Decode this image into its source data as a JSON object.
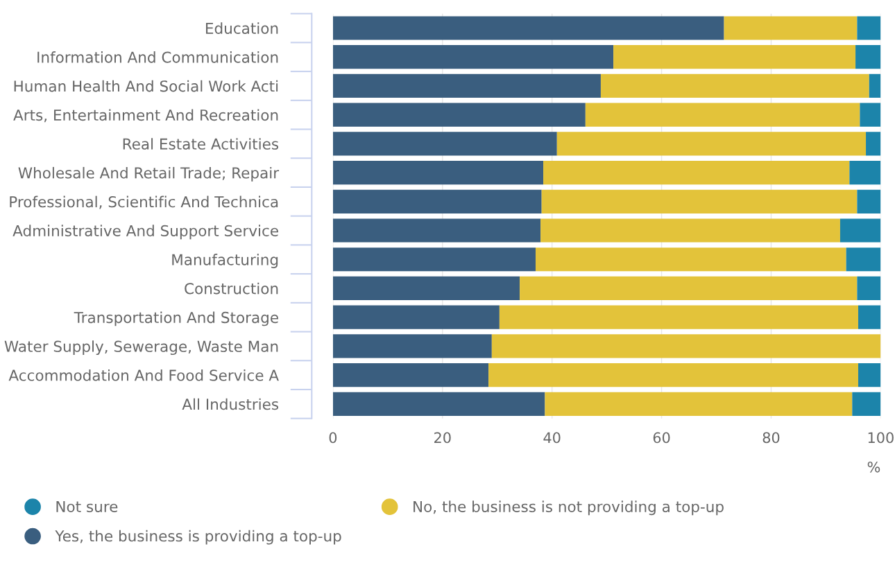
{
  "chart_data": {
    "type": "bar",
    "orientation": "horizontal",
    "stacked": true,
    "categories": [
      "Education",
      "Information And Communication",
      "Human Health And Social Work Acti",
      "Arts, Entertainment And Recreation",
      "Real Estate Activities",
      "Wholesale And Retail Trade; Repair",
      "Professional, Scientific And Technica",
      "Administrative And Support Service",
      "Manufacturing",
      "Construction",
      "Transportation And Storage",
      "Water Supply, Sewerage, Waste Man",
      "Accommodation And Food Service A",
      "All Industries"
    ],
    "series": [
      {
        "name": "Yes, the business is providing a top-up",
        "color": "#3a5e7f",
        "values": [
          71.4,
          51.2,
          48.9,
          46.1,
          40.9,
          38.4,
          38.1,
          37.9,
          37.0,
          34.1,
          30.4,
          29.0,
          28.4,
          38.7
        ]
      },
      {
        "name": "No, the business is not providing a top-up",
        "color": "#e3c33a",
        "values": [
          24.3,
          44.2,
          49.0,
          50.1,
          56.4,
          55.9,
          57.6,
          54.7,
          56.7,
          61.6,
          65.5,
          71.0,
          67.5,
          56.1
        ]
      },
      {
        "name": "Not sure",
        "color": "#1c84aa",
        "values": [
          4.3,
          4.6,
          2.1,
          3.8,
          2.7,
          5.7,
          4.3,
          7.4,
          6.3,
          4.3,
          4.1,
          0,
          4.1,
          5.2
        ]
      }
    ],
    "xlabel": "%",
    "xlim": [
      0,
      100
    ],
    "xticks": [
      0,
      20,
      40,
      60,
      80,
      100
    ],
    "grid": "x",
    "legend": "bottom"
  }
}
